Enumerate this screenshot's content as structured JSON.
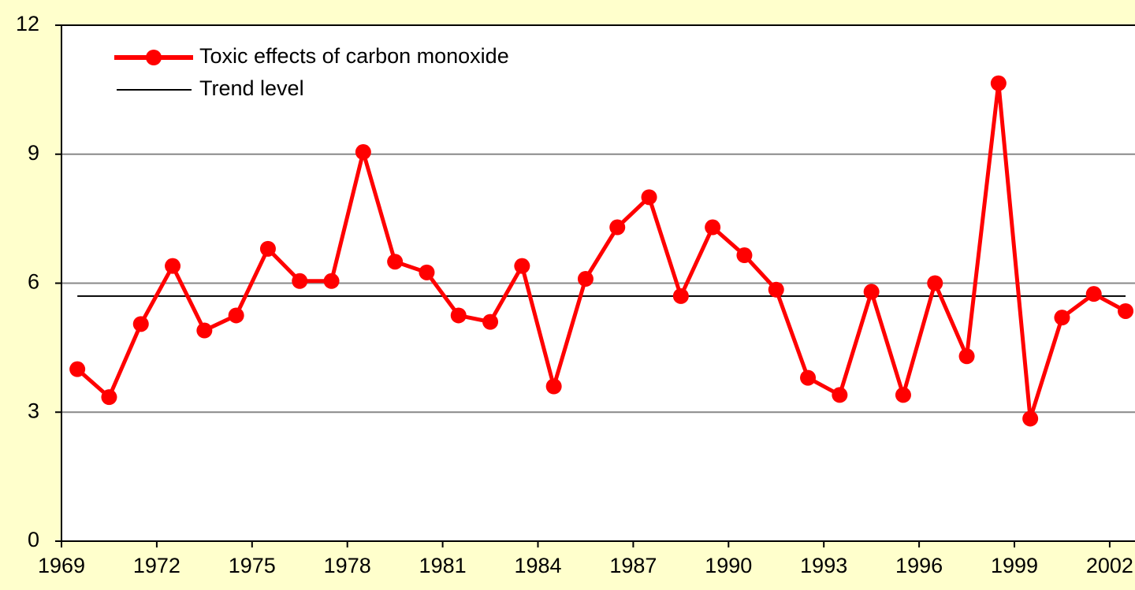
{
  "chart_data": {
    "type": "line",
    "categories": [
      "1969",
      null,
      null,
      "1972",
      null,
      null,
      "1975",
      null,
      null,
      "1978",
      null,
      null,
      "1981",
      null,
      null,
      "1984",
      null,
      null,
      "1987",
      null,
      null,
      "1990",
      null,
      null,
      "1993",
      null,
      null,
      "1996",
      null,
      null,
      "1999",
      null,
      null,
      "2002"
    ],
    "series": [
      {
        "name": "Toxic effects of carbon monoxide",
        "color": "#ff0000",
        "values": [
          4.0,
          3.35,
          5.05,
          6.4,
          4.9,
          5.25,
          6.8,
          6.05,
          6.05,
          9.05,
          6.5,
          6.25,
          5.25,
          5.1,
          6.4,
          3.6,
          6.1,
          7.3,
          8.0,
          5.7,
          7.3,
          6.65,
          5.85,
          3.8,
          3.4,
          5.8,
          3.4,
          6.0,
          4.3,
          10.65,
          2.85,
          5.2,
          5.75,
          5.35
        ]
      }
    ],
    "trend": {
      "name": "Trend level",
      "value": 5.7,
      "color": "#000000"
    },
    "ylim": [
      0,
      12
    ],
    "yticks": [
      0,
      3,
      6,
      9,
      12
    ],
    "grid": true
  }
}
